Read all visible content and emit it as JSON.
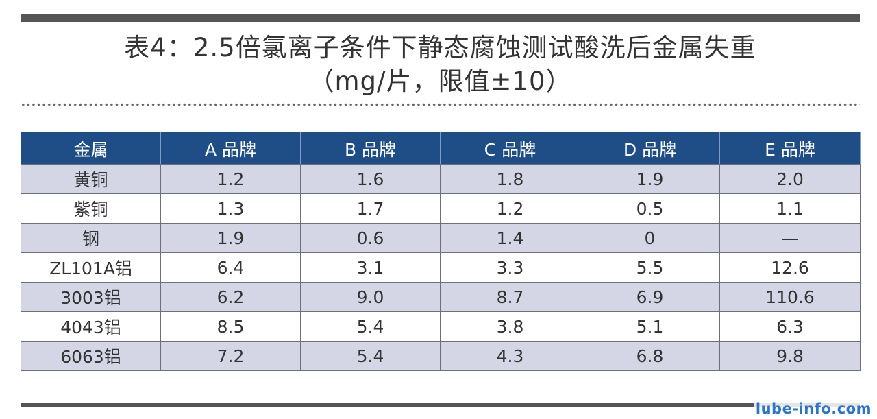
{
  "title": {
    "line1": "表4：2.5倍氯离子条件下静态腐蚀测试酸洗后金属失重",
    "line2": "（mg/片，限值±10）"
  },
  "table": {
    "headers": [
      "金属",
      "A 品牌",
      "B 品牌",
      "C 品牌",
      "D 品牌",
      "E 品牌"
    ],
    "rows": [
      [
        "黄铜",
        "1.2",
        "1.6",
        "1.8",
        "1.9",
        "2.0"
      ],
      [
        "紫铜",
        "1.3",
        "1.7",
        "1.2",
        "0.5",
        "1.1"
      ],
      [
        "钢",
        "1.9",
        "0.6",
        "1.4",
        "0",
        "—"
      ],
      [
        "ZL101A铝",
        "6.4",
        "3.1",
        "3.3",
        "5.5",
        "12.6"
      ],
      [
        "3003铝",
        "6.2",
        "9.0",
        "8.7",
        "6.9",
        "110.6"
      ],
      [
        "4043铝",
        "8.5",
        "5.4",
        "3.8",
        "5.1",
        "6.3"
      ],
      [
        "6063铝",
        "7.2",
        "5.4",
        "4.3",
        "6.8",
        "9.8"
      ]
    ]
  },
  "watermark": "lube-info.com",
  "colors": {
    "header_bg": "#1f4d86",
    "row_band": "#d4d6e6",
    "rule": "#555557",
    "watermark": "#2a74c9"
  }
}
